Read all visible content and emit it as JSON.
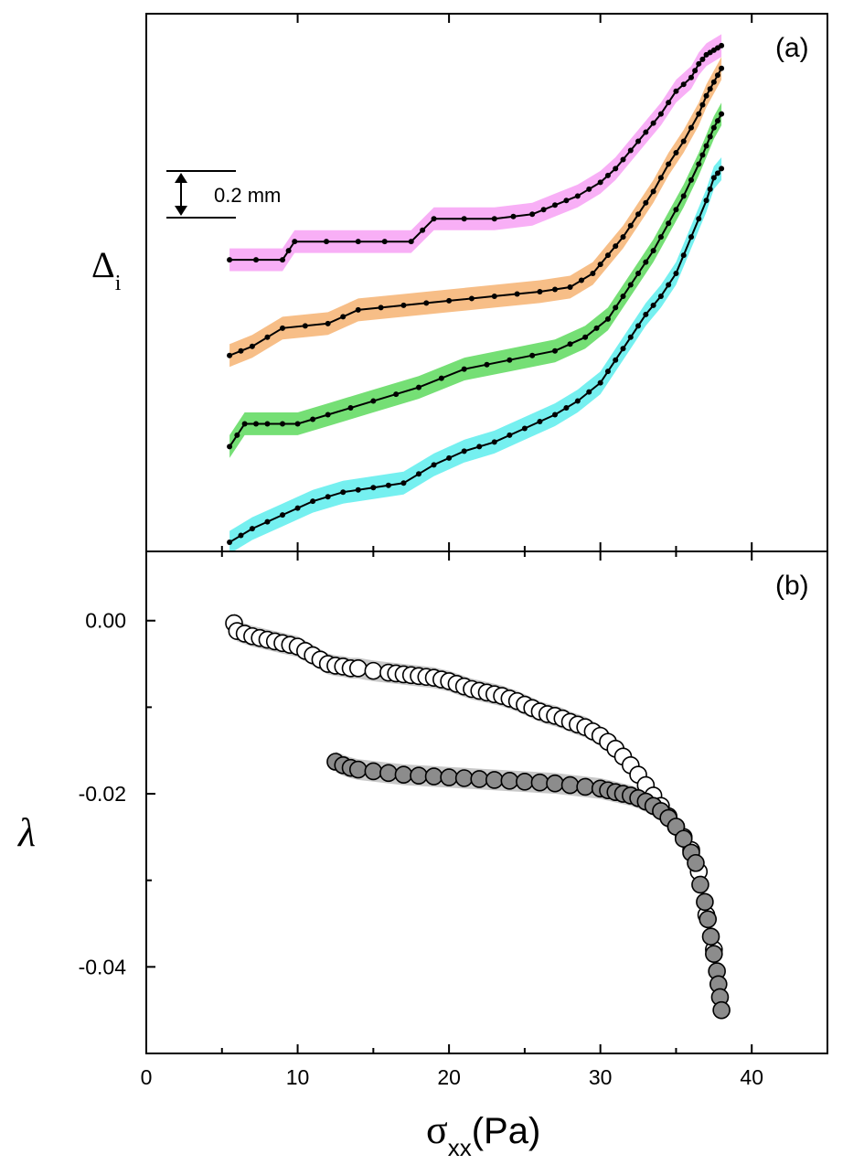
{
  "chart_data": [
    {
      "panel": "(a)",
      "type": "line",
      "ylabel": "Δ",
      "ylabel_sub": "i",
      "xlabel": "",
      "xlim": [
        0,
        45
      ],
      "scale_bar_label": "0.2 mm",
      "ylim_mm": [
        0,
        1.18
      ],
      "series": [
        {
          "name": "magenta",
          "color": "#f7a6f5",
          "x": [
            5.5,
            9.0,
            9.8,
            14,
            17.5,
            19,
            23,
            25.5,
            27,
            28.5,
            30,
            31,
            32,
            33,
            34,
            35,
            36,
            36.5,
            37,
            37.5,
            38
          ],
          "y": [
            0.64,
            0.64,
            0.68,
            0.68,
            0.68,
            0.73,
            0.73,
            0.74,
            0.76,
            0.78,
            0.81,
            0.84,
            0.88,
            0.92,
            0.96,
            1.01,
            1.04,
            1.07,
            1.09,
            1.1,
            1.11
          ]
        },
        {
          "name": "orange",
          "color": "#f6b77a",
          "x": [
            5.5,
            7,
            9,
            12,
            14,
            17,
            20,
            23,
            26,
            28,
            29.5,
            30.5,
            31.5,
            32.5,
            33.5,
            34.5,
            35.5,
            36.5,
            37,
            37.5,
            38
          ],
          "y": [
            0.43,
            0.45,
            0.49,
            0.5,
            0.53,
            0.54,
            0.55,
            0.56,
            0.57,
            0.58,
            0.61,
            0.65,
            0.69,
            0.74,
            0.79,
            0.85,
            0.9,
            0.96,
            1.0,
            1.03,
            1.06
          ]
        },
        {
          "name": "green",
          "color": "#66dc66",
          "x": [
            5.5,
            6.5,
            8,
            10,
            12,
            15,
            18,
            21,
            24,
            27,
            29,
            30.5,
            31.5,
            32.5,
            33.5,
            34.5,
            35.5,
            36.5,
            37,
            37.5,
            38
          ],
          "y": [
            0.23,
            0.28,
            0.28,
            0.28,
            0.3,
            0.33,
            0.36,
            0.4,
            0.42,
            0.44,
            0.47,
            0.51,
            0.56,
            0.61,
            0.66,
            0.72,
            0.78,
            0.85,
            0.89,
            0.93,
            0.96
          ]
        },
        {
          "name": "cyan",
          "color": "#66eeee",
          "x": [
            5.5,
            7,
            9,
            11,
            13,
            15,
            17,
            19,
            21,
            23,
            25,
            27,
            28.5,
            30,
            31,
            32,
            33,
            34,
            35,
            36,
            37,
            37.5,
            38
          ],
          "y": [
            0.02,
            0.05,
            0.08,
            0.11,
            0.13,
            0.14,
            0.15,
            0.19,
            0.22,
            0.24,
            0.27,
            0.3,
            0.33,
            0.37,
            0.42,
            0.47,
            0.52,
            0.56,
            0.61,
            0.69,
            0.77,
            0.82,
            0.84
          ]
        }
      ]
    },
    {
      "panel": "(b)",
      "type": "scatter",
      "ylabel": "λ",
      "xlabel": "σ",
      "xlabel_sub": "xx",
      "xlabel_unit": "(Pa)",
      "xlim": [
        0,
        45
      ],
      "ylim": [
        -0.05,
        0.008
      ],
      "x_ticks": [
        0,
        10,
        20,
        30,
        40
      ],
      "x_tick_labels": [
        "0",
        "10",
        "20",
        "30",
        "40"
      ],
      "y_ticks": [
        0.0,
        -0.02,
        -0.04
      ],
      "y_tick_labels": [
        "0.00",
        "-0.02",
        "-0.04"
      ],
      "series": [
        {
          "name": "open circles",
          "fill": "#ffffff",
          "x": [
            5.8,
            6.0,
            6.5,
            7.0,
            7.5,
            8.0,
            8.5,
            9.0,
            9.5,
            10.0,
            10.5,
            11.0,
            11.5,
            12.0,
            12.5,
            13.0,
            13.5,
            14.0,
            15.0,
            16.0,
            16.5,
            17.0,
            17.5,
            18.0,
            18.5,
            19.0,
            19.5,
            20.0,
            20.5,
            21.0,
            21.5,
            22.0,
            22.5,
            23.0,
            23.5,
            24.0,
            24.5,
            25.0,
            25.5,
            26.0,
            26.5,
            27.0,
            27.5,
            28.0,
            28.5,
            29.0,
            29.5,
            30.0,
            30.5,
            31.0,
            31.5,
            32.0,
            32.5,
            33.0,
            33.5,
            34.0,
            34.5,
            35.0,
            35.5,
            36.0,
            36.5,
            37.0,
            37.5
          ],
          "y": [
            -0.0003,
            -0.0012,
            -0.0015,
            -0.0018,
            -0.002,
            -0.0022,
            -0.0024,
            -0.0026,
            -0.0028,
            -0.003,
            -0.0035,
            -0.004,
            -0.0045,
            -0.005,
            -0.0052,
            -0.0053,
            -0.0055,
            -0.0055,
            -0.0058,
            -0.006,
            -0.0061,
            -0.0062,
            -0.0063,
            -0.0064,
            -0.0065,
            -0.0066,
            -0.0068,
            -0.007,
            -0.0073,
            -0.0076,
            -0.0079,
            -0.0081,
            -0.0083,
            -0.0085,
            -0.0087,
            -0.009,
            -0.0093,
            -0.0097,
            -0.0101,
            -0.0105,
            -0.0108,
            -0.011,
            -0.0113,
            -0.0117,
            -0.012,
            -0.0123,
            -0.0128,
            -0.0133,
            -0.014,
            -0.0148,
            -0.0157,
            -0.0167,
            -0.0178,
            -0.019,
            -0.0202,
            -0.0214,
            -0.0226,
            -0.0238,
            -0.025,
            -0.0265,
            -0.029,
            -0.034,
            -0.038
          ]
        },
        {
          "name": "filled circles",
          "fill": "#8c8c8c",
          "x": [
            12.5,
            13.0,
            13.5,
            14.0,
            15.0,
            16.0,
            17.0,
            18.0,
            19.0,
            20.0,
            21.0,
            22.0,
            23.0,
            24.0,
            25.0,
            26.0,
            27.0,
            28.0,
            29.0,
            30.0,
            30.5,
            31.0,
            31.5,
            32.0,
            32.5,
            33.0,
            33.5,
            34.0,
            34.5,
            35.0,
            35.5,
            36.0,
            36.3,
            36.6,
            36.9,
            37.1,
            37.3,
            37.5,
            37.7,
            37.8,
            37.9,
            38.0
          ],
          "y": [
            -0.0163,
            -0.0167,
            -0.017,
            -0.0172,
            -0.0174,
            -0.0176,
            -0.0178,
            -0.0179,
            -0.018,
            -0.0181,
            -0.0182,
            -0.0183,
            -0.0184,
            -0.0185,
            -0.0186,
            -0.0187,
            -0.0188,
            -0.019,
            -0.0192,
            -0.0194,
            -0.0196,
            -0.0198,
            -0.02,
            -0.0202,
            -0.0205,
            -0.0209,
            -0.0214,
            -0.022,
            -0.0228,
            -0.0238,
            -0.0252,
            -0.0268,
            -0.028,
            -0.0305,
            -0.0325,
            -0.0345,
            -0.0365,
            -0.0385,
            -0.0405,
            -0.042,
            -0.0435,
            -0.045
          ]
        }
      ]
    }
  ],
  "labels": {
    "panel_a": "(a)",
    "panel_b": "(b)",
    "scale_bar": "0.2 mm",
    "ylabel_a": "Δ",
    "ylabel_a_sub": "i",
    "ylabel_b": "λ",
    "xlabel": "σ",
    "xlabel_sub": "xx",
    "xlabel_unit": "(Pa)"
  }
}
